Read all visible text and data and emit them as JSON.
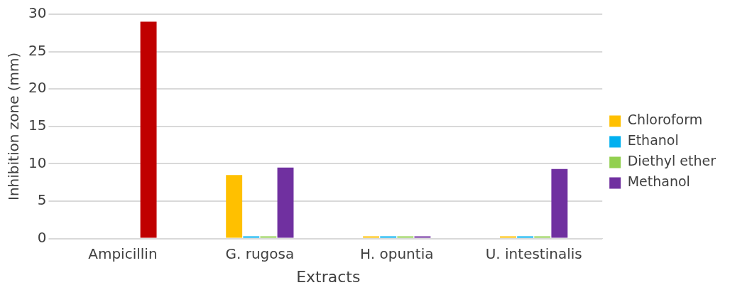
{
  "chart_data": {
    "type": "bar",
    "xlabel": "Extracts",
    "ylabel": "Inhibition zone (mm)",
    "categories": [
      "Ampicillin",
      "G. rugosa",
      "H. opuntia",
      "U. intestinalis"
    ],
    "series": [
      {
        "name": "Chloroform",
        "color": "#ffc000",
        "values": [
          null,
          8.5,
          0,
          0
        ]
      },
      {
        "name": "Ethanol",
        "color": "#00b0f0",
        "values": [
          null,
          0,
          0,
          0
        ]
      },
      {
        "name": "Diethyl ether",
        "color": "#92d050",
        "values": [
          null,
          0,
          0,
          0
        ]
      },
      {
        "name": "Methanol",
        "color": "#7030a0",
        "colors": [
          "#c00000",
          "#7030a0",
          "#7030a0",
          "#7030a0"
        ],
        "values": [
          29,
          9.5,
          0,
          9.3
        ]
      }
    ],
    "ylim": [
      0,
      30
    ],
    "yticks": [
      0,
      5,
      10,
      15,
      20,
      25,
      30
    ],
    "grid": "y",
    "legend": "right"
  }
}
